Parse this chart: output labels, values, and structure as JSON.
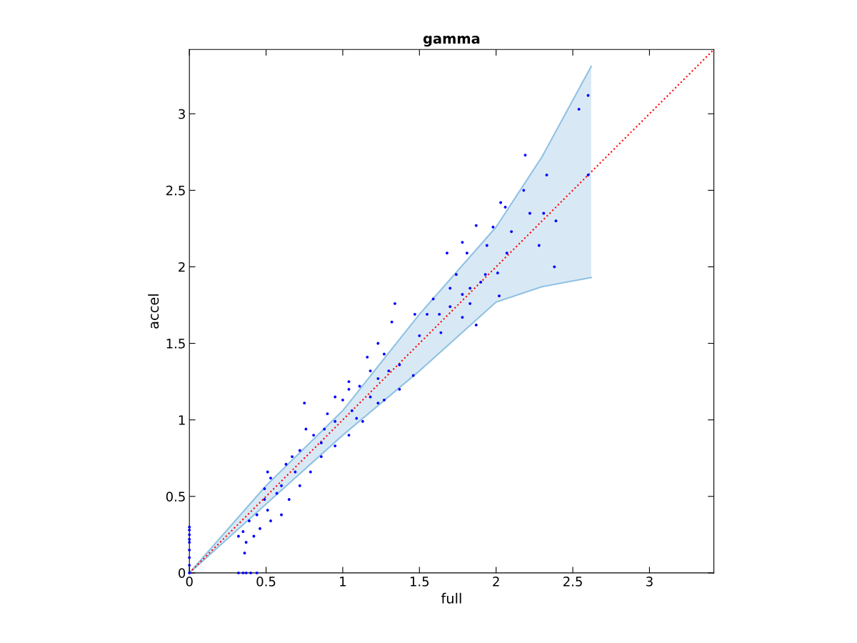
{
  "chart_data": {
    "type": "scatter",
    "title": "gamma",
    "xlabel": "full",
    "ylabel": "accel",
    "xlim": [
      0,
      3.42
    ],
    "ylim": [
      0,
      3.42
    ],
    "xticks": [
      0,
      0.5,
      1,
      1.5,
      2,
      2.5,
      3
    ],
    "yticks": [
      0,
      0.5,
      1,
      1.5,
      2,
      2.5,
      3
    ],
    "grid": false,
    "legend": false,
    "marker": "circle",
    "series": [
      {
        "type": "line",
        "color": "#8fc1e3",
        "upper": [
          0,
          0.57,
          1.06,
          1.69,
          2.26,
          2.72,
          3.31
        ],
        "x": [
          0,
          0.5,
          1,
          1.5,
          2,
          2.3,
          2.62
        ],
        "marker": "none",
        "lower": [
          0,
          0.45,
          0.9,
          1.32,
          1.77,
          1.87,
          1.93
        ],
        "values": [
          0,
          0.57,
          1.06,
          1.69,
          2.26,
          2.72,
          3.31
        ]
      },
      {
        "type": "line",
        "color": "#8fc1e3",
        "marker": "none",
        "x": [
          0,
          0.5,
          1,
          1.5,
          2,
          2.3,
          2.62
        ],
        "values": [
          0,
          0.45,
          0.9,
          1.32,
          1.77,
          1.87,
          1.93
        ]
      },
      {
        "type": "line",
        "color": "#ff0000",
        "marker": "none",
        "line_style": "dotted",
        "x": [
          0,
          3.42
        ],
        "values": [
          0,
          3.42
        ]
      },
      {
        "color": "#0000ff",
        "x": [
          2.6,
          2.54,
          2.6,
          2.19,
          2.33,
          2.18,
          2.06,
          2.03,
          2.31,
          2.22,
          2.39,
          1.98,
          2.1,
          1.87,
          2.28,
          2.38,
          2.07,
          1.78,
          1.68,
          1.81,
          1.94,
          2.01,
          1.93,
          2.02,
          1.9,
          1.83,
          1.74,
          1.78,
          1.7,
          1.59,
          1.63,
          1.55,
          1.47,
          1.34,
          1.5,
          1.64,
          1.83,
          1.78,
          1.87,
          1.7,
          1.32,
          1.23,
          1.27,
          1.16,
          1.37,
          1.3,
          1.23,
          1.11,
          1.18,
          1.04,
          1.0,
          0.95,
          1.06,
          0.9,
          0.88,
          0.81,
          0.76,
          0.75,
          0.95,
          1.09,
          0.86,
          0.72,
          0.67,
          0.69,
          0.63,
          0.6,
          0.53,
          0.57,
          0.49,
          0.51,
          0.44,
          0.46,
          0.39,
          0.35,
          0.32,
          0.37,
          0.36,
          0.42,
          0.53,
          0.6,
          0.65,
          0.72,
          0.79,
          0.86,
          0.95,
          1.04,
          1.13,
          1.23,
          1.37,
          1.46,
          1.04,
          1.18,
          1.27,
          0.51,
          0.49,
          0,
          0,
          0,
          0,
          0,
          0,
          0,
          0,
          0,
          0.32,
          0.35,
          0.37,
          0.4,
          0.44
        ],
        "values": [
          3.12,
          3.03,
          2.6,
          2.73,
          2.6,
          2.5,
          2.39,
          2.42,
          2.35,
          2.35,
          2.3,
          2.26,
          2.23,
          2.27,
          2.14,
          2.0,
          2.09,
          2.16,
          2.09,
          2.09,
          2.14,
          1.96,
          1.95,
          1.81,
          1.9,
          1.86,
          1.95,
          1.82,
          1.86,
          1.79,
          1.69,
          1.69,
          1.69,
          1.76,
          1.55,
          1.57,
          1.76,
          1.67,
          1.62,
          1.74,
          1.64,
          1.5,
          1.43,
          1.41,
          1.36,
          1.32,
          1.27,
          1.22,
          1.15,
          1.25,
          1.13,
          1.15,
          1.06,
          1.04,
          0.94,
          0.9,
          0.94,
          1.11,
          0.99,
          1.01,
          0.85,
          0.8,
          0.76,
          0.66,
          0.71,
          0.57,
          0.62,
          0.52,
          0.48,
          0.41,
          0.38,
          0.29,
          0.34,
          0.27,
          0.24,
          0.2,
          0.13,
          0.24,
          0.34,
          0.38,
          0.48,
          0.57,
          0.66,
          0.76,
          0.83,
          0.9,
          0.99,
          1.11,
          1.2,
          1.29,
          1.2,
          1.32,
          1.13,
          0.66,
          0.55,
          0,
          0.05,
          0.1,
          0.15,
          0.2,
          0.25,
          0.3,
          0.28,
          0.22,
          0,
          0,
          0,
          0,
          0
        ]
      }
    ]
  }
}
